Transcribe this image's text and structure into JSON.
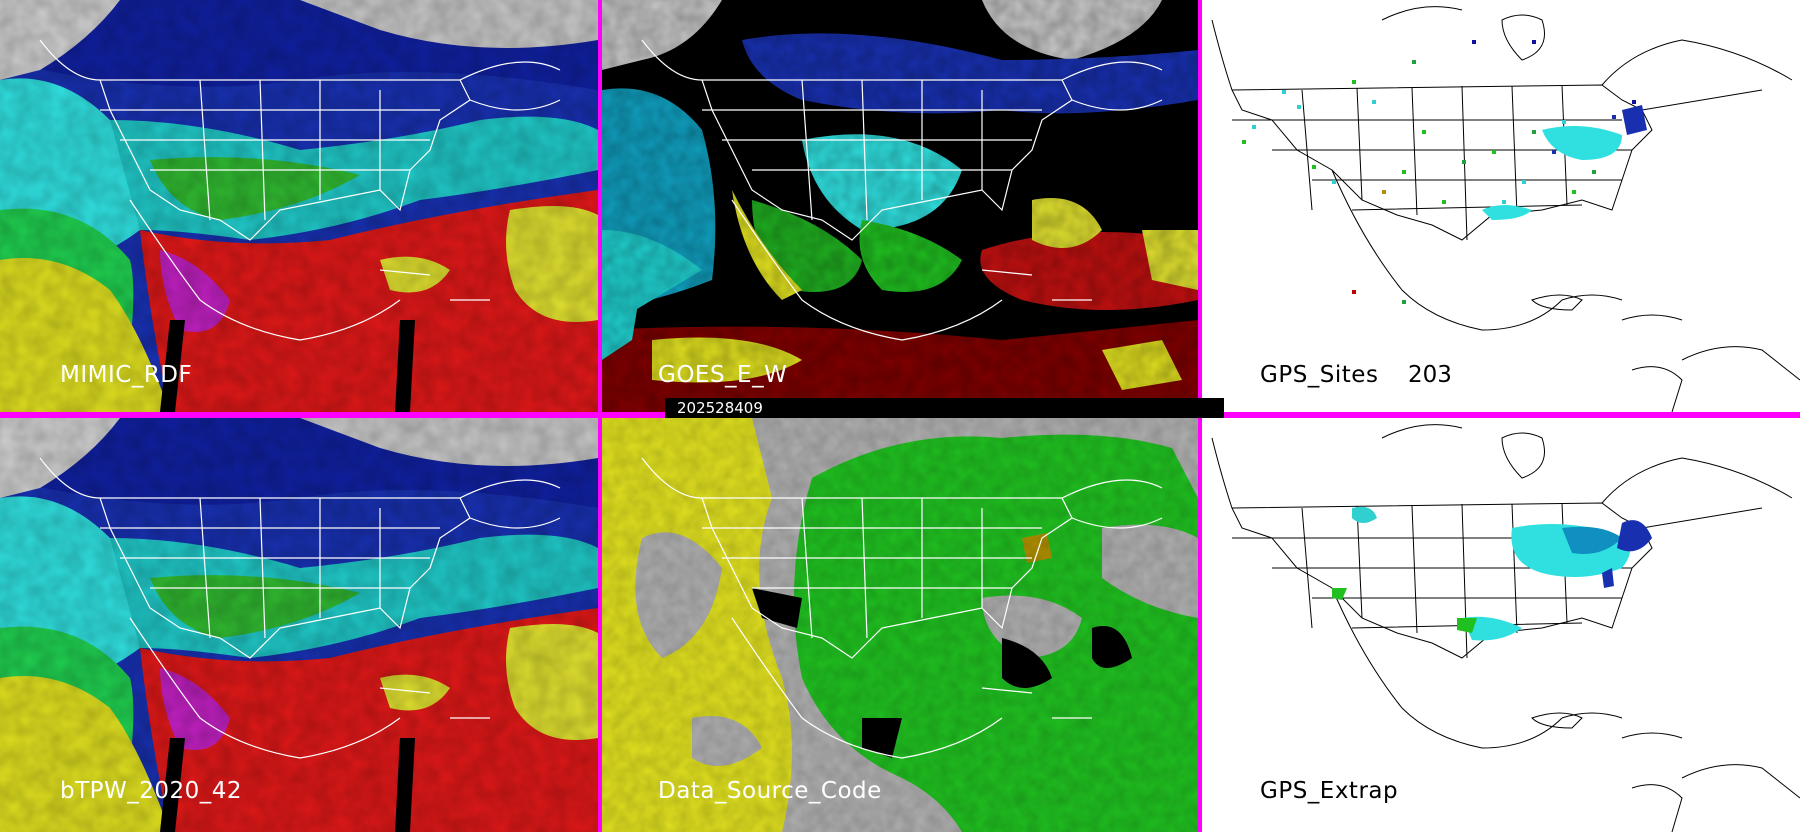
{
  "panels": [
    {
      "id": "mimic",
      "label": "MIMIC_RDF",
      "style": "dark"
    },
    {
      "id": "goes",
      "label": "GOES_E_W",
      "style": "dark"
    },
    {
      "id": "gps-sites",
      "label": "GPS_Sites",
      "count": "203",
      "style": "light"
    },
    {
      "id": "btpw",
      "label": "bTPW_2020_42",
      "style": "dark"
    },
    {
      "id": "data-source",
      "label": "Data_Source_Code",
      "style": "dark"
    },
    {
      "id": "gps-extrap",
      "label": "GPS_Extrap",
      "style": "light"
    }
  ],
  "timestamp": "202528409",
  "colors": {
    "divider": "#ff00ff",
    "tpw_scale": [
      "#ffffff",
      "#c0c0c0",
      "#1010a0",
      "#2040d0",
      "#00e0e0",
      "#00c000",
      "#e0e000",
      "#e00000",
      "#c000c0"
    ],
    "source_codes": [
      "#b0b0b0",
      "#00c000",
      "#e0e000",
      "#000000",
      "#b09000"
    ]
  }
}
